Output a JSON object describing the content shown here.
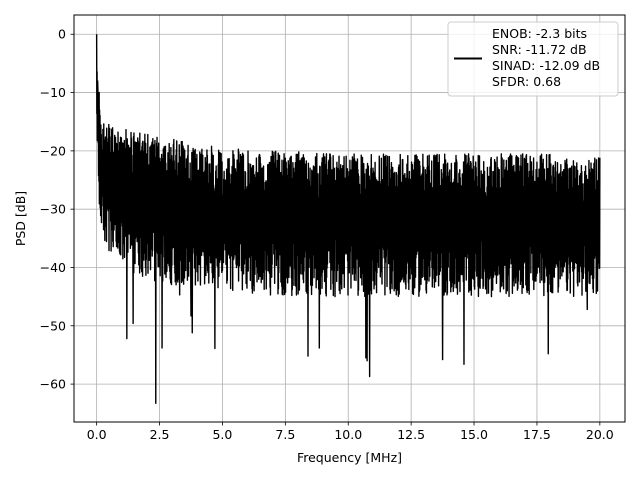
{
  "chart_data": {
    "type": "line",
    "title": "",
    "xlabel": "Frequency [MHz]",
    "ylabel": "PSD [dB]",
    "xlim": [
      -0.9,
      21.0
    ],
    "ylim": [
      -66.5,
      3.3
    ],
    "x_ticks": [
      0.0,
      2.5,
      5.0,
      7.5,
      10.0,
      12.5,
      15.0,
      17.5,
      20.0
    ],
    "x_tick_labels": [
      "0.0",
      "2.5",
      "5.0",
      "7.5",
      "10.0",
      "12.5",
      "15.0",
      "17.5",
      "20.0"
    ],
    "y_ticks": [
      0,
      -10,
      -20,
      -30,
      -40,
      -50,
      -60
    ],
    "y_tick_labels": [
      "0",
      "−10",
      "−20",
      "−30",
      "−40",
      "−50",
      "−60"
    ],
    "grid": true,
    "legend_position": "upper right",
    "line_color": "#000000",
    "series": [
      {
        "legend_lines": [
          "ENOB: -2.3 bits",
          "SNR: -11.72 dB",
          "SINAD: -12.09 dB",
          "SFDR: 0.68"
        ],
        "x_range": [
          0.0,
          20.0
        ],
        "envelope_x": [
          0.0,
          0.02,
          0.05,
          0.1,
          0.2,
          0.3,
          0.5,
          1.0,
          2.0,
          3.0,
          5.0,
          7.5,
          10.0,
          12.5,
          15.0,
          17.5,
          20.0
        ],
        "envelope_upper": [
          0.0,
          -4,
          -8,
          -10,
          -13,
          -15,
          -15.5,
          -16,
          -17,
          -18,
          -19.5,
          -20,
          -20.5,
          -20.5,
          -20.5,
          -20.5,
          -21
        ],
        "envelope_lower": [
          -15,
          -20,
          -26,
          -30,
          -34,
          -36,
          -38,
          -40,
          -42,
          -43,
          -44,
          -45,
          -45,
          -45,
          -45,
          -45,
          -45
        ],
        "notable_points": [
          {
            "x": 0.0,
            "y": 0.0
          },
          {
            "x": 0.04,
            "y": -8.0
          },
          {
            "x": 0.1,
            "y": -10.0
          },
          {
            "x": 0.15,
            "y": -17.0
          },
          {
            "x": 1.2,
            "y": -52.2
          },
          {
            "x": 1.45,
            "y": -49.6
          },
          {
            "x": 2.35,
            "y": -63.3
          },
          {
            "x": 2.6,
            "y": -53.8
          },
          {
            "x": 3.3,
            "y": -44.7
          },
          {
            "x": 3.75,
            "y": -48.3
          },
          {
            "x": 3.8,
            "y": -51.2
          },
          {
            "x": 4.7,
            "y": -53.9
          },
          {
            "x": 5.0,
            "y": -40.5
          },
          {
            "x": 8.4,
            "y": -55.2
          },
          {
            "x": 8.85,
            "y": -53.8
          },
          {
            "x": 10.7,
            "y": -55.5
          },
          {
            "x": 10.85,
            "y": -58.7
          },
          {
            "x": 10.75,
            "y": -56.0
          },
          {
            "x": 13.75,
            "y": -55.8
          },
          {
            "x": 14.6,
            "y": -56.6
          },
          {
            "x": 17.95,
            "y": -54.8
          },
          {
            "x": 19.5,
            "y": -47.2
          }
        ]
      }
    ]
  }
}
